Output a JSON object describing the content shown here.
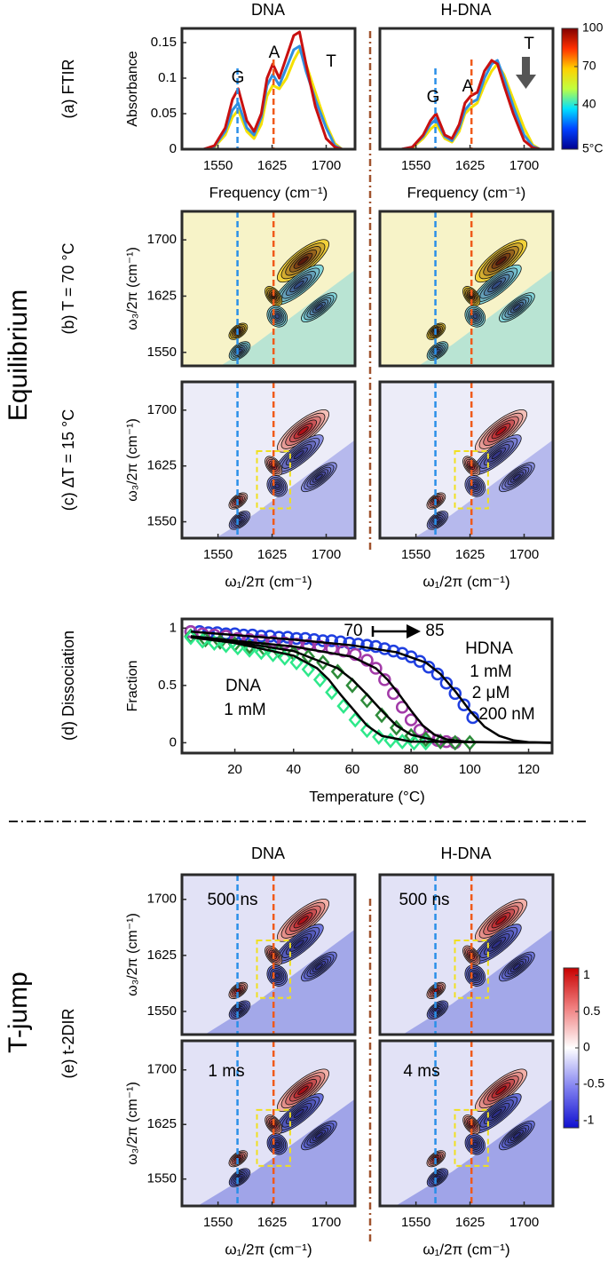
{
  "column_titles": {
    "equilibrium": [
      "DNA",
      "H-DNA"
    ],
    "t_jump": [
      "DNA",
      "H-DNA"
    ]
  },
  "section_labels": [
    {
      "text": "Equilibrium"
    },
    {
      "text": "T-jump"
    }
  ],
  "panel_labels": [
    {
      "text": "(a) FTIR",
      "color": "#000000"
    },
    {
      "text": "(b) T = 70 °C",
      "color": "#2233cc"
    },
    {
      "text": "(c) ΔT = 15 °C",
      "color": "#a0522d"
    },
    {
      "text": "(d) Dissociation",
      "color": "#000000"
    },
    {
      "text": "(e) t-2DIR",
      "color": "#000000"
    }
  ],
  "chart_data": [
    {
      "type": "line",
      "xlim": [
        1500,
        1740
      ],
      "ylim": [
        0,
        0.17
      ],
      "xticks": [
        1550,
        1625,
        1700
      ],
      "yticks": [
        0,
        0.05,
        0.1,
        0.15
      ],
      "xlabel": "Frequency (cm⁻¹)",
      "ylabel": "Absorbance",
      "x": [
        1530,
        1545,
        1560,
        1570,
        1578,
        1590,
        1600,
        1610,
        1618,
        1626,
        1635,
        1645,
        1655,
        1663,
        1672,
        1685,
        1700,
        1712,
        1722
      ],
      "series": [
        {
          "color": "#f5e000",
          "values": [
            0,
            0.003,
            0.02,
            0.045,
            0.055,
            0.025,
            0.015,
            0.035,
            0.075,
            0.09,
            0.085,
            0.1,
            0.125,
            0.14,
            0.12,
            0.08,
            0.035,
            0.008,
            0
          ]
        },
        {
          "color": "#2f8fe0",
          "values": [
            0,
            0.004,
            0.025,
            0.055,
            0.065,
            0.03,
            0.02,
            0.045,
            0.09,
            0.105,
            0.09,
            0.115,
            0.14,
            0.145,
            0.11,
            0.07,
            0.03,
            0.005,
            0
          ]
        },
        {
          "color": "#c81010",
          "values": [
            0,
            0.005,
            0.03,
            0.07,
            0.085,
            0.04,
            0.025,
            0.05,
            0.1,
            0.12,
            0.1,
            0.13,
            0.16,
            0.165,
            0.12,
            0.06,
            0.015,
            0.003,
            0
          ]
        }
      ],
      "annotations": [
        {
          "text": "G",
          "color": "#2a8fe8"
        },
        {
          "text": "A",
          "color": "#f05a1a"
        },
        {
          "text": "T",
          "color": "#2a9a4a"
        }
      ]
    },
    {
      "type": "line",
      "xlim": [
        1500,
        1740
      ],
      "ylim": [
        0,
        0.17
      ],
      "xticks": [
        1550,
        1625,
        1700
      ],
      "xlabel": "Frequency (cm⁻¹)",
      "x": [
        1530,
        1545,
        1560,
        1570,
        1578,
        1590,
        1600,
        1610,
        1618,
        1626,
        1635,
        1645,
        1655,
        1663,
        1672,
        1685,
        1700,
        1712,
        1722
      ],
      "series": [
        {
          "color": "#f5e000",
          "values": [
            0,
            0.002,
            0.015,
            0.028,
            0.035,
            0.015,
            0.01,
            0.025,
            0.05,
            0.058,
            0.065,
            0.09,
            0.11,
            0.12,
            0.105,
            0.07,
            0.03,
            0.006,
            0
          ]
        },
        {
          "color": "#2f8fe0",
          "values": [
            0,
            0.003,
            0.018,
            0.035,
            0.042,
            0.018,
            0.012,
            0.03,
            0.055,
            0.065,
            0.07,
            0.1,
            0.12,
            0.125,
            0.1,
            0.06,
            0.02,
            0.004,
            0
          ]
        },
        {
          "color": "#c81010",
          "values": [
            0,
            0.003,
            0.02,
            0.04,
            0.05,
            0.02,
            0.015,
            0.035,
            0.065,
            0.075,
            0.08,
            0.11,
            0.125,
            0.12,
            0.09,
            0.05,
            0.012,
            0.002,
            0
          ]
        }
      ],
      "annotations": [
        {
          "text": "G",
          "color": "#2a8fe8"
        },
        {
          "text": "A",
          "color": "#f05a1a"
        },
        {
          "text": "T",
          "color": "#2a9a4a"
        }
      ]
    },
    {
      "type": "contour",
      "xlim": [
        1500,
        1740
      ],
      "ylim": [
        1532,
        1738
      ],
      "yticks": [
        1550,
        1625,
        1700
      ],
      "ylabel": "ω₃/2π (cm⁻¹)",
      "colors": [
        "#f7f3c8",
        "#86d8dc",
        "#f3d23a",
        "#5a1a0a"
      ]
    },
    {
      "type": "contour",
      "xlim": [
        1500,
        1740
      ],
      "ylim": [
        1532,
        1738
      ],
      "colors": [
        "#f7f3c8",
        "#86d8dc",
        "#f3d23a",
        "#5a1a0a"
      ]
    },
    {
      "type": "contour",
      "xlim": [
        1500,
        1740
      ],
      "ylim": [
        1528,
        1738
      ],
      "xticks": [
        1550,
        1625,
        1700
      ],
      "yticks": [
        1550,
        1625,
        1700
      ],
      "xlabel": "ω₁/2π (cm⁻¹)",
      "ylabel": "ω₃/2π (cm⁻¹)",
      "colors": [
        "#ececf8",
        "#8a90e4",
        "#f4c0b8",
        "#b01018"
      ]
    },
    {
      "type": "contour",
      "xlim": [
        1500,
        1740
      ],
      "ylim": [
        1528,
        1738
      ],
      "xticks": [
        1550,
        1625,
        1700
      ],
      "xlabel": "ω₁/2π (cm⁻¹)",
      "colors": [
        "#ececf8",
        "#8a90e4",
        "#f4c0b8",
        "#b01018"
      ]
    },
    {
      "type": "line",
      "xlim": [
        2,
        128
      ],
      "ylim": [
        -0.09,
        1.08
      ],
      "xticks": [
        20,
        40,
        60,
        80,
        100,
        120
      ],
      "yticks": [
        0,
        0.5,
        1
      ],
      "xlabel": "Temperature (°C)",
      "ylabel": "Fraction",
      "series": [
        {
          "color": "#1f3fe0",
          "marker": "circle",
          "x": [
            5,
            8,
            11,
            14,
            17,
            20,
            23,
            26,
            29,
            32,
            35,
            38,
            41,
            44,
            47,
            50,
            53,
            56,
            59,
            62,
            65,
            68,
            71,
            74,
            77,
            80,
            83,
            86,
            89,
            92,
            95,
            98,
            101
          ],
          "values": [
            0.97,
            0.97,
            0.96,
            0.96,
            0.95,
            0.95,
            0.94,
            0.94,
            0.93,
            0.93,
            0.92,
            0.92,
            0.91,
            0.91,
            0.9,
            0.89,
            0.89,
            0.88,
            0.87,
            0.86,
            0.85,
            0.84,
            0.82,
            0.8,
            0.78,
            0.75,
            0.71,
            0.66,
            0.6,
            0.52,
            0.43,
            0.33,
            0.22
          ]
        },
        {
          "color": "#a23aa8",
          "marker": "circle",
          "x": [
            5,
            9,
            13,
            17,
            21,
            25,
            29,
            33,
            37,
            41,
            45,
            49,
            53,
            57,
            61,
            65,
            68,
            71,
            74,
            77,
            80,
            83,
            86,
            89,
            92,
            95
          ],
          "values": [
            0.97,
            0.95,
            0.94,
            0.93,
            0.91,
            0.9,
            0.89,
            0.88,
            0.87,
            0.86,
            0.85,
            0.84,
            0.82,
            0.8,
            0.77,
            0.72,
            0.65,
            0.55,
            0.43,
            0.31,
            0.2,
            0.11,
            0.05,
            0.02,
            0.01,
            0
          ]
        },
        {
          "color": "#2e8b3a",
          "marker": "diamond",
          "x": [
            5,
            10,
            15,
            20,
            25,
            30,
            35,
            40,
            45,
            50,
            55,
            60,
            65,
            70,
            75,
            80,
            85,
            90,
            95,
            100
          ],
          "values": [
            0.93,
            0.9,
            0.88,
            0.86,
            0.84,
            0.82,
            0.8,
            0.78,
            0.75,
            0.7,
            0.62,
            0.5,
            0.37,
            0.24,
            0.13,
            0.06,
            0.03,
            0.01,
            0,
            0
          ]
        },
        {
          "color": "#2ee88a",
          "marker": "diamond",
          "x": [
            5,
            9,
            13,
            17,
            21,
            25,
            29,
            33,
            37,
            41,
            45,
            49,
            53,
            57,
            61,
            65,
            69,
            73,
            77,
            81,
            85
          ],
          "values": [
            0.92,
            0.89,
            0.87,
            0.85,
            0.83,
            0.81,
            0.79,
            0.77,
            0.74,
            0.7,
            0.64,
            0.55,
            0.44,
            0.32,
            0.2,
            0.11,
            0.05,
            0.02,
            0.01,
            0,
            0
          ]
        },
        {
          "color": "#000000",
          "x": [
            5,
            20,
            40,
            60,
            75,
            85,
            90,
            95,
            100,
            105,
            110,
            115,
            120,
            130
          ],
          "values": [
            0.97,
            0.94,
            0.9,
            0.85,
            0.79,
            0.7,
            0.6,
            0.45,
            0.28,
            0.14,
            0.06,
            0.02,
            0.005,
            0
          ]
        },
        {
          "color": "#000000",
          "x": [
            5,
            20,
            40,
            60,
            68,
            72,
            76,
            80,
            84,
            88,
            92,
            100,
            130
          ],
          "values": [
            0.93,
            0.89,
            0.84,
            0.75,
            0.65,
            0.55,
            0.42,
            0.28,
            0.15,
            0.07,
            0.03,
            0.005,
            0
          ]
        },
        {
          "color": "#000000",
          "x": [
            5,
            20,
            40,
            55,
            60,
            65,
            70,
            75,
            80,
            90,
            130
          ],
          "values": [
            0.92,
            0.88,
            0.8,
            0.65,
            0.55,
            0.42,
            0.28,
            0.15,
            0.07,
            0.01,
            0
          ]
        },
        {
          "color": "#000000",
          "x": [
            5,
            20,
            40,
            48,
            52,
            56,
            60,
            65,
            70,
            80,
            130
          ],
          "values": [
            0.92,
            0.87,
            0.76,
            0.65,
            0.55,
            0.42,
            0.3,
            0.15,
            0.06,
            0.01,
            0
          ]
        }
      ],
      "annotations": [
        {
          "text": "70",
          "color": "#1f3fe0"
        },
        {
          "text": "85",
          "color": "#a0522d"
        },
        {
          "text": "HDNA",
          "color": "#000000"
        },
        {
          "text": "1 mM",
          "color": "#1f3fe0"
        },
        {
          "text": "2 μM",
          "color": "#2e8b3a"
        },
        {
          "text": "200 nM",
          "color": "#2ee88a"
        },
        {
          "text": "DNA",
          "color": "#000000"
        },
        {
          "text": "1 mM",
          "color": "#a23aa8"
        }
      ]
    },
    {
      "type": "contour",
      "xlim": [
        1500,
        1740
      ],
      "ylim": [
        1519,
        1733
      ],
      "yticks": [
        1550,
        1625,
        1700
      ],
      "ylabel": "ω₃/2π (cm⁻¹)",
      "colors": [
        "#e2e2f6",
        "#7078de",
        "#f2b0a8",
        "#b01018"
      ],
      "annotations": [
        {
          "text": "500 ns",
          "color": "#000000"
        }
      ]
    },
    {
      "type": "contour",
      "xlim": [
        1500,
        1740
      ],
      "ylim": [
        1519,
        1733
      ],
      "colors": [
        "#e2e2f6",
        "#7078de",
        "#f2b0a8",
        "#b01018"
      ],
      "annotations": [
        {
          "text": "500 ns",
          "color": "#000000"
        }
      ]
    },
    {
      "type": "contour",
      "xlim": [
        1500,
        1740
      ],
      "ylim": [
        1513,
        1740
      ],
      "xticks": [
        1550,
        1625,
        1700
      ],
      "yticks": [
        1550,
        1625,
        1700
      ],
      "xlabel": "ω₁/2π (cm⁻¹)",
      "ylabel": "ω₃/2π (cm⁻¹)",
      "colors": [
        "#e2e2f6",
        "#6a72dc",
        "#f2b0a8",
        "#a80e16"
      ],
      "annotations": [
        {
          "text": "1 ms",
          "color": "#000000"
        }
      ]
    },
    {
      "type": "contour",
      "xlim": [
        1500,
        1740
      ],
      "ylim": [
        1513,
        1740
      ],
      "xticks": [
        1550,
        1625,
        1700
      ],
      "xlabel": "ω₁/2π (cm⁻¹)",
      "colors": [
        "#e2e2f6",
        "#6a72dc",
        "#f2b0a8",
        "#a80e16"
      ],
      "annotations": [
        {
          "text": "4 ms",
          "color": "#000000"
        }
      ]
    },
    {
      "type": "colorbar",
      "ylim": [
        5,
        100
      ],
      "yticks": [
        100,
        70,
        40,
        {
          "value": 5,
          "label": "5°C"
        }
      ],
      "colors": [
        "#00008f",
        "#0040ff",
        "#00e0ff",
        "#c0ff40",
        "#ffd000",
        "#ff3000",
        "#800000"
      ]
    },
    {
      "type": "colorbar",
      "ylim": [
        -1.1,
        1.1
      ],
      "yticks": [
        1,
        0.5,
        0,
        -0.5,
        -1
      ],
      "colors": [
        "#1010d0",
        "#8080f0",
        "#ffffff",
        "#f08080",
        "#c80000"
      ]
    }
  ]
}
